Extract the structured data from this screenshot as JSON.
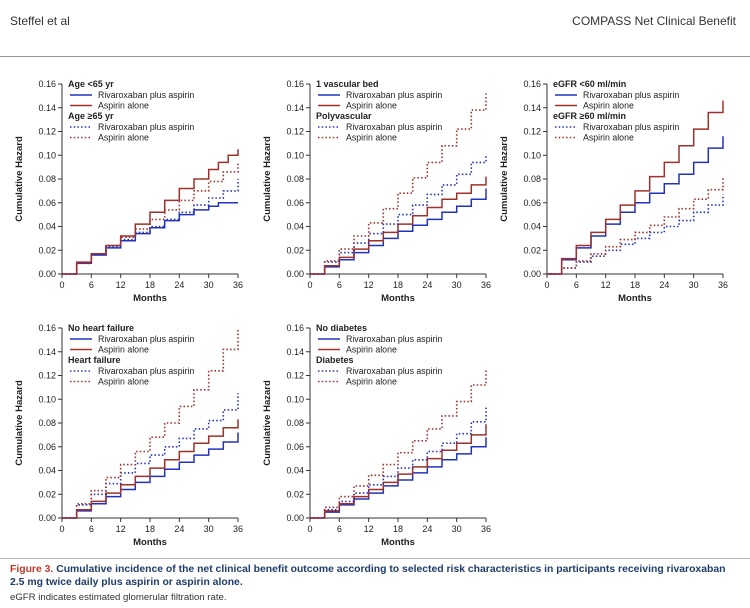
{
  "header": {
    "left": "Steffel et al",
    "right": "COMPASS Net Clinical Benefit"
  },
  "caption": {
    "figure_label": "Figure 3.",
    "text": "Cumulative incidence of the net clinical benefit outcome according to selected risk characteristics in participants receiving rivaroxaban 2.5 mg twice daily plus aspirin or aspirin alone.",
    "footnote": "eGFR indicates estimated glomerular filtration rate."
  },
  "colors": {
    "blue": "#2233bb",
    "red": "#a0302a",
    "axis": "#333333"
  },
  "chart_data": [
    {
      "type": "line",
      "xlabel": "Months",
      "ylabel": "Cumulative Hazard",
      "xlim": [
        0,
        36
      ],
      "ylim": [
        0,
        0.16
      ],
      "xticks": [
        "0",
        "6",
        "12",
        "18",
        "24",
        "30",
        "36"
      ],
      "yticks": [
        "0.00",
        "0.02",
        "0.04",
        "0.06",
        "0.08",
        "0.10",
        "0.12",
        "0.14",
        "0.16"
      ],
      "legend": [
        {
          "heading": "Age <65 yr",
          "entries": [
            "Rivaroxaban plus aspirin",
            "Aspirin alone"
          ]
        },
        {
          "heading": "Age ≥65 yr",
          "entries": [
            "Rivaroxaban plus aspirin",
            "Aspirin alone"
          ]
        }
      ],
      "series": [
        {
          "name": "Age <65 yr – Rivaroxaban plus aspirin",
          "color": "blue",
          "style": "solid",
          "x": [
            0,
            3,
            6,
            9,
            12,
            15,
            18,
            21,
            24,
            27,
            30,
            32,
            34,
            36
          ],
          "y": [
            0,
            0.009,
            0.016,
            0.022,
            0.028,
            0.034,
            0.039,
            0.045,
            0.05,
            0.054,
            0.057,
            0.06,
            0.06,
            0.06
          ]
        },
        {
          "name": "Age <65 yr – Aspirin alone",
          "color": "red",
          "style": "solid",
          "x": [
            0,
            3,
            6,
            9,
            12,
            15,
            18,
            21,
            24,
            27,
            30,
            32,
            34,
            36
          ],
          "y": [
            0,
            0.01,
            0.017,
            0.024,
            0.032,
            0.042,
            0.052,
            0.062,
            0.072,
            0.08,
            0.088,
            0.094,
            0.1,
            0.105
          ]
        },
        {
          "name": "Age ≥65 yr – Rivaroxaban plus aspirin",
          "color": "blue",
          "style": "dotted",
          "x": [
            0,
            3,
            6,
            9,
            12,
            15,
            18,
            21,
            24,
            27,
            30,
            33,
            36
          ],
          "y": [
            0,
            0.009,
            0.016,
            0.023,
            0.029,
            0.035,
            0.04,
            0.046,
            0.052,
            0.058,
            0.064,
            0.07,
            0.08
          ]
        },
        {
          "name": "Age ≥65 yr – Aspirin alone",
          "color": "red",
          "style": "dotted",
          "x": [
            0,
            3,
            6,
            9,
            12,
            15,
            18,
            21,
            24,
            27,
            30,
            33,
            36
          ],
          "y": [
            0,
            0.009,
            0.017,
            0.024,
            0.031,
            0.038,
            0.046,
            0.054,
            0.062,
            0.07,
            0.078,
            0.086,
            0.094
          ]
        }
      ]
    },
    {
      "type": "line",
      "xlabel": "Months",
      "ylabel": "Cumulative Hazard",
      "xlim": [
        0,
        36
      ],
      "ylim": [
        0,
        0.16
      ],
      "xticks": [
        "0",
        "6",
        "12",
        "18",
        "24",
        "30",
        "36"
      ],
      "yticks": [
        "0.00",
        "0.02",
        "0.04",
        "0.06",
        "0.08",
        "0.10",
        "0.12",
        "0.14",
        "0.16"
      ],
      "legend": [
        {
          "heading": "1 vascular bed",
          "entries": [
            "Rivaroxaban plus aspirin",
            "Aspirin alone"
          ]
        },
        {
          "heading": "Polyvascular",
          "entries": [
            "Rivaroxaban plus aspirin",
            "Aspirin alone"
          ]
        }
      ],
      "series": [
        {
          "name": "1 vascular bed – Rivaroxaban plus aspirin",
          "color": "blue",
          "style": "solid",
          "x": [
            0,
            3,
            6,
            9,
            12,
            15,
            18,
            21,
            24,
            27,
            30,
            33,
            36
          ],
          "y": [
            0,
            0.006,
            0.012,
            0.018,
            0.024,
            0.03,
            0.036,
            0.041,
            0.046,
            0.052,
            0.057,
            0.063,
            0.072
          ]
        },
        {
          "name": "1 vascular bed – Aspirin alone",
          "color": "red",
          "style": "solid",
          "x": [
            0,
            3,
            6,
            9,
            12,
            15,
            18,
            21,
            24,
            27,
            30,
            33,
            36
          ],
          "y": [
            0,
            0.007,
            0.014,
            0.021,
            0.028,
            0.035,
            0.042,
            0.049,
            0.056,
            0.063,
            0.068,
            0.075,
            0.082
          ]
        },
        {
          "name": "Polyvascular – Rivaroxaban plus aspirin",
          "color": "blue",
          "style": "dotted",
          "x": [
            0,
            3,
            6,
            9,
            12,
            15,
            18,
            21,
            24,
            27,
            30,
            33,
            36
          ],
          "y": [
            0,
            0.01,
            0.018,
            0.026,
            0.034,
            0.042,
            0.05,
            0.058,
            0.067,
            0.075,
            0.084,
            0.094,
            0.1
          ]
        },
        {
          "name": "Polyvascular – Aspirin alone",
          "color": "red",
          "style": "dotted",
          "x": [
            0,
            3,
            6,
            9,
            12,
            15,
            18,
            21,
            24,
            27,
            30,
            33,
            36
          ],
          "y": [
            0,
            0.011,
            0.021,
            0.032,
            0.043,
            0.055,
            0.068,
            0.081,
            0.094,
            0.108,
            0.122,
            0.138,
            0.152
          ]
        }
      ]
    },
    {
      "type": "line",
      "xlabel": "Months",
      "ylabel": "Cumulative Hazard",
      "xlim": [
        0,
        36
      ],
      "ylim": [
        0,
        0.16
      ],
      "xticks": [
        "0",
        "6",
        "12",
        "18",
        "24",
        "30",
        "36"
      ],
      "yticks": [
        "0.00",
        "0.02",
        "0.04",
        "0.06",
        "0.08",
        "0.10",
        "0.12",
        "0.14",
        "0.16"
      ],
      "legend": [
        {
          "heading": "eGFR <60 ml/min",
          "entries": [
            "Rivaroxaban plus aspirin",
            "Aspirin alone"
          ]
        },
        {
          "heading": "eGFR ≥60 ml/min",
          "entries": [
            "Rivaroxaban plus aspirin",
            "Aspirin alone"
          ]
        }
      ],
      "series": [
        {
          "name": "eGFR <60 ml/min – Rivaroxaban plus aspirin",
          "color": "blue",
          "style": "solid",
          "x": [
            0,
            3,
            6,
            9,
            12,
            15,
            18,
            21,
            24,
            27,
            30,
            33,
            36
          ],
          "y": [
            0,
            0.012,
            0.022,
            0.032,
            0.042,
            0.052,
            0.06,
            0.068,
            0.076,
            0.084,
            0.094,
            0.106,
            0.116
          ]
        },
        {
          "name": "eGFR <60 ml/min – Aspirin alone",
          "color": "red",
          "style": "solid",
          "x": [
            0,
            3,
            6,
            9,
            12,
            15,
            18,
            21,
            24,
            27,
            30,
            33,
            36
          ],
          "y": [
            0,
            0.013,
            0.024,
            0.035,
            0.046,
            0.058,
            0.07,
            0.082,
            0.094,
            0.108,
            0.122,
            0.136,
            0.146
          ]
        },
        {
          "name": "eGFR ≥60 ml/min – Rivaroxaban plus aspirin",
          "color": "blue",
          "style": "dotted",
          "x": [
            0,
            3,
            6,
            9,
            12,
            15,
            18,
            21,
            24,
            27,
            30,
            33,
            36
          ],
          "y": [
            0,
            0.005,
            0.01,
            0.015,
            0.02,
            0.025,
            0.03,
            0.035,
            0.04,
            0.045,
            0.052,
            0.058,
            0.067
          ]
        },
        {
          "name": "eGFR ≥60 ml/min – Aspirin alone",
          "color": "red",
          "style": "dotted",
          "x": [
            0,
            3,
            6,
            9,
            12,
            15,
            18,
            21,
            24,
            27,
            30,
            33,
            36
          ],
          "y": [
            0,
            0.005,
            0.011,
            0.017,
            0.023,
            0.029,
            0.035,
            0.041,
            0.048,
            0.055,
            0.063,
            0.071,
            0.081
          ]
        }
      ]
    },
    {
      "type": "line",
      "xlabel": "Months",
      "ylabel": "Cumulative Hazard",
      "xlim": [
        0,
        36
      ],
      "ylim": [
        0,
        0.16
      ],
      "xticks": [
        "0",
        "6",
        "12",
        "18",
        "24",
        "30",
        "36"
      ],
      "yticks": [
        "0.00",
        "0.02",
        "0.04",
        "0.06",
        "0.08",
        "0.10",
        "0.12",
        "0.14",
        "0.16"
      ],
      "legend": [
        {
          "heading": "No heart failure",
          "entries": [
            "Rivaroxaban plus aspirin",
            "Aspirin alone"
          ]
        },
        {
          "heading": "Heart failure",
          "entries": [
            "Rivaroxaban plus aspirin",
            "Aspirin alone"
          ]
        }
      ],
      "series": [
        {
          "name": "No heart failure – Rivaroxaban plus aspirin",
          "color": "blue",
          "style": "solid",
          "x": [
            0,
            3,
            6,
            9,
            12,
            15,
            18,
            21,
            24,
            27,
            30,
            33,
            36
          ],
          "y": [
            0,
            0.006,
            0.012,
            0.018,
            0.024,
            0.03,
            0.035,
            0.041,
            0.047,
            0.053,
            0.058,
            0.064,
            0.072
          ]
        },
        {
          "name": "No heart failure – Aspirin alone",
          "color": "red",
          "style": "solid",
          "x": [
            0,
            3,
            6,
            9,
            12,
            15,
            18,
            21,
            24,
            27,
            30,
            33,
            36
          ],
          "y": [
            0,
            0.007,
            0.014,
            0.021,
            0.028,
            0.035,
            0.042,
            0.049,
            0.056,
            0.063,
            0.069,
            0.076,
            0.083
          ]
        },
        {
          "name": "Heart failure – Rivaroxaban plus aspirin",
          "color": "blue",
          "style": "dotted",
          "x": [
            0,
            3,
            6,
            9,
            12,
            15,
            18,
            21,
            24,
            27,
            30,
            33,
            36
          ],
          "y": [
            0,
            0.011,
            0.02,
            0.029,
            0.038,
            0.046,
            0.053,
            0.06,
            0.067,
            0.075,
            0.082,
            0.091,
            0.105
          ]
        },
        {
          "name": "Heart failure – Aspirin alone",
          "color": "red",
          "style": "dotted",
          "x": [
            0,
            3,
            6,
            9,
            12,
            15,
            18,
            21,
            24,
            27,
            30,
            33,
            36
          ],
          "y": [
            0,
            0.012,
            0.023,
            0.034,
            0.045,
            0.056,
            0.068,
            0.08,
            0.094,
            0.108,
            0.124,
            0.142,
            0.159
          ]
        }
      ]
    },
    {
      "type": "line",
      "xlabel": "Months",
      "ylabel": "Cumulative Hazard",
      "xlim": [
        0,
        36
      ],
      "ylim": [
        0,
        0.16
      ],
      "xticks": [
        "0",
        "6",
        "12",
        "18",
        "24",
        "30",
        "36"
      ],
      "yticks": [
        "0.00",
        "0.02",
        "0.04",
        "0.06",
        "0.08",
        "0.10",
        "0.12",
        "0.14",
        "0.16"
      ],
      "legend": [
        {
          "heading": "No diabetes",
          "entries": [
            "Rivaroxaban plus aspirin",
            "Aspirin alone"
          ]
        },
        {
          "heading": "Diabetes",
          "entries": [
            "Rivaroxaban plus aspirin",
            "Aspirin alone"
          ]
        }
      ],
      "series": [
        {
          "name": "No diabetes – Rivaroxaban plus aspirin",
          "color": "blue",
          "style": "solid",
          "x": [
            0,
            3,
            6,
            9,
            12,
            15,
            18,
            21,
            24,
            27,
            30,
            33,
            36
          ],
          "y": [
            0,
            0.005,
            0.011,
            0.016,
            0.021,
            0.027,
            0.032,
            0.038,
            0.043,
            0.049,
            0.054,
            0.06,
            0.068
          ]
        },
        {
          "name": "No diabetes – Aspirin alone",
          "color": "red",
          "style": "solid",
          "x": [
            0,
            3,
            6,
            9,
            12,
            15,
            18,
            21,
            24,
            27,
            30,
            33,
            36
          ],
          "y": [
            0,
            0.006,
            0.012,
            0.018,
            0.024,
            0.03,
            0.037,
            0.043,
            0.05,
            0.057,
            0.063,
            0.07,
            0.079
          ]
        },
        {
          "name": "Diabetes – Rivaroxaban plus aspirin",
          "color": "blue",
          "style": "dotted",
          "x": [
            0,
            3,
            6,
            9,
            12,
            15,
            18,
            21,
            24,
            27,
            30,
            33,
            36
          ],
          "y": [
            0,
            0.007,
            0.014,
            0.021,
            0.028,
            0.035,
            0.042,
            0.049,
            0.056,
            0.063,
            0.071,
            0.081,
            0.094
          ]
        },
        {
          "name": "Diabetes – Aspirin alone",
          "color": "red",
          "style": "dotted",
          "x": [
            0,
            3,
            6,
            9,
            12,
            15,
            18,
            21,
            24,
            27,
            30,
            33,
            36
          ],
          "y": [
            0,
            0.009,
            0.018,
            0.027,
            0.036,
            0.045,
            0.055,
            0.065,
            0.075,
            0.086,
            0.098,
            0.112,
            0.126
          ]
        }
      ]
    }
  ]
}
